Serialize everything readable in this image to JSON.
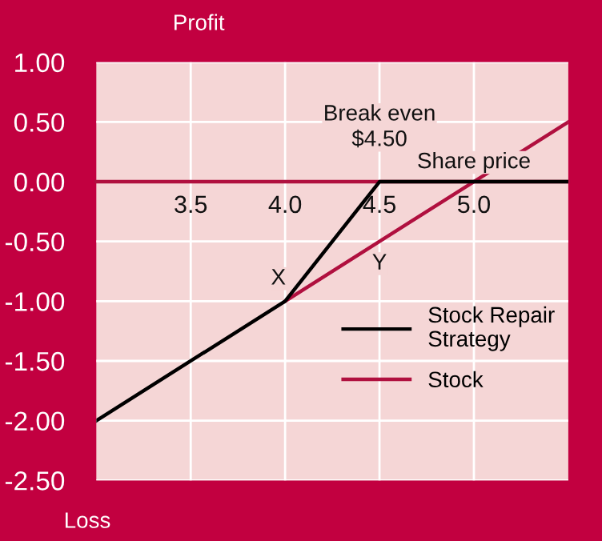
{
  "chart_data": {
    "type": "line",
    "series": [
      {
        "name": "Stock Repair Strategy",
        "color": "#000000",
        "x": [
          3.0,
          4.0,
          4.5,
          5.5
        ],
        "values": [
          -2.0,
          -1.0,
          0.0,
          0.0
        ]
      },
      {
        "name": "Stock",
        "color": "#b0103f",
        "x": [
          4.0,
          5.5
        ],
        "values": [
          -1.0,
          0.5
        ]
      }
    ],
    "xlim": [
      3.0,
      5.5
    ],
    "xticks": [
      3.5,
      {
        "value": 4.0,
        "label": "4.0"
      },
      4.5,
      {
        "value": 5.0,
        "label": "5.0"
      }
    ],
    "ylim": [
      -2.5,
      1.0
    ],
    "yticks": [
      {
        "value": 1.0,
        "label": "1.00"
      },
      {
        "value": 0.5,
        "label": "0.50"
      },
      {
        "value": 0.0,
        "label": "0.00"
      },
      {
        "value": -0.5,
        "label": "-0.50"
      },
      {
        "value": -1.0,
        "label": "-1.00"
      },
      {
        "value": -1.5,
        "label": "-1.50"
      },
      {
        "value": -2.0,
        "label": "-2.00"
      },
      {
        "value": -2.5,
        "label": "-2.50"
      }
    ],
    "annotations": [
      {
        "text": "Break even\n$4.50",
        "x": 4.5,
        "y": 0.0
      },
      {
        "text": "Share price",
        "x": 5.0,
        "y": 0.0
      },
      {
        "text": "X",
        "x": 4.2,
        "y": -0.7
      },
      {
        "text": "Y",
        "x": 4.5,
        "y": -0.5
      },
      "Profit",
      "Loss"
    ],
    "grid": true,
    "legend": "bottom right",
    "line_style": "solid",
    "marker": "none"
  }
}
